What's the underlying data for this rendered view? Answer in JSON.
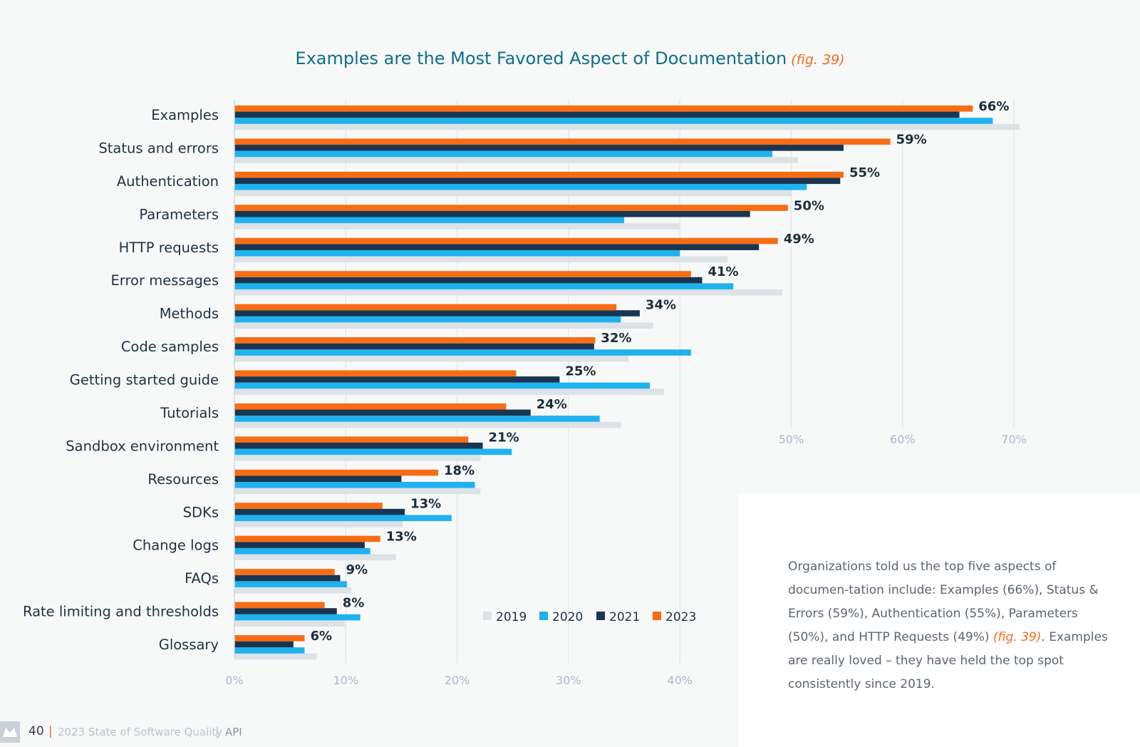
{
  "chart_data": {
    "type": "bar",
    "orientation": "horizontal",
    "title": "Examples are the Most Favored Aspect of Documentation",
    "title_ref": "(fig. 39)",
    "categories": [
      "Examples",
      "Status and errors",
      "Authentication",
      "Parameters",
      "HTTP requests",
      "Error messages",
      "Methods",
      "Code samples",
      "Getting started guide",
      "Tutorials",
      "Sandbox environment",
      "Resources",
      "SDKs",
      "Change logs",
      "FAQs",
      "Rate limiting and thresholds",
      "Glossary"
    ],
    "series": [
      {
        "name": "2019",
        "color": "#dde2e7",
        "values": [
          70.5,
          50.6,
          50.0,
          40.0,
          44.3,
          49.2,
          37.6,
          35.4,
          38.6,
          34.7,
          22.1,
          22.1,
          15.1,
          14.5,
          10.5,
          9.9,
          7.4
        ]
      },
      {
        "name": "2020",
        "color": "#1fb2ee",
        "values": [
          68.1,
          48.3,
          51.4,
          35.0,
          40.0,
          44.8,
          34.7,
          41.0,
          37.3,
          32.8,
          24.9,
          21.6,
          19.5,
          12.2,
          10.1,
          11.3,
          6.3
        ]
      },
      {
        "name": "2021",
        "color": "#183651",
        "values": [
          65.1,
          54.7,
          54.4,
          46.3,
          47.1,
          42.0,
          36.4,
          32.3,
          29.2,
          26.6,
          22.3,
          15.0,
          15.3,
          11.7,
          9.5,
          9.2,
          5.3
        ]
      },
      {
        "name": "2023",
        "color": "#f76c15",
        "values": [
          66.3,
          58.9,
          54.7,
          49.7,
          48.8,
          41.0,
          34.3,
          32.4,
          25.3,
          24.4,
          21.0,
          18.3,
          13.3,
          13.1,
          9.0,
          8.1,
          6.3
        ]
      }
    ],
    "data_labels": [
      "66%",
      "59%",
      "55%",
      "50%",
      "49%",
      "41%",
      "34%",
      "32%",
      "25%",
      "24%",
      "21%",
      "18%",
      "13%",
      "13%",
      "9%",
      "8%",
      "6%"
    ],
    "x_ticks": [
      {
        "value": 0,
        "label": "0%"
      },
      {
        "value": 10,
        "label": "10%"
      },
      {
        "value": 20,
        "label": "20%"
      },
      {
        "value": 30,
        "label": "30%"
      },
      {
        "value": 40,
        "label": "40%"
      },
      {
        "value": 50,
        "label": "50%"
      },
      {
        "value": 60,
        "label": "60%"
      },
      {
        "value": 70,
        "label": "70%"
      }
    ],
    "xlim": [
      0,
      70
    ],
    "grid": true,
    "legend": "bottom-center"
  },
  "note": {
    "text_before": "Organizations told us the top five aspects of documen-tation include: Examples (66%), Status & Errors (59%), Authentication (55%), Parameters (50%), and HTTP Requests (49%) ",
    "fig_ref": "(fig. 39)",
    "text_after": ". Examples are really loved – they have held the top spot consistently since 2019."
  },
  "footer": {
    "page_number": "40",
    "separator": "|",
    "report_name": "2023 State of Software Quality",
    "section_separator": "|",
    "section": "API"
  }
}
